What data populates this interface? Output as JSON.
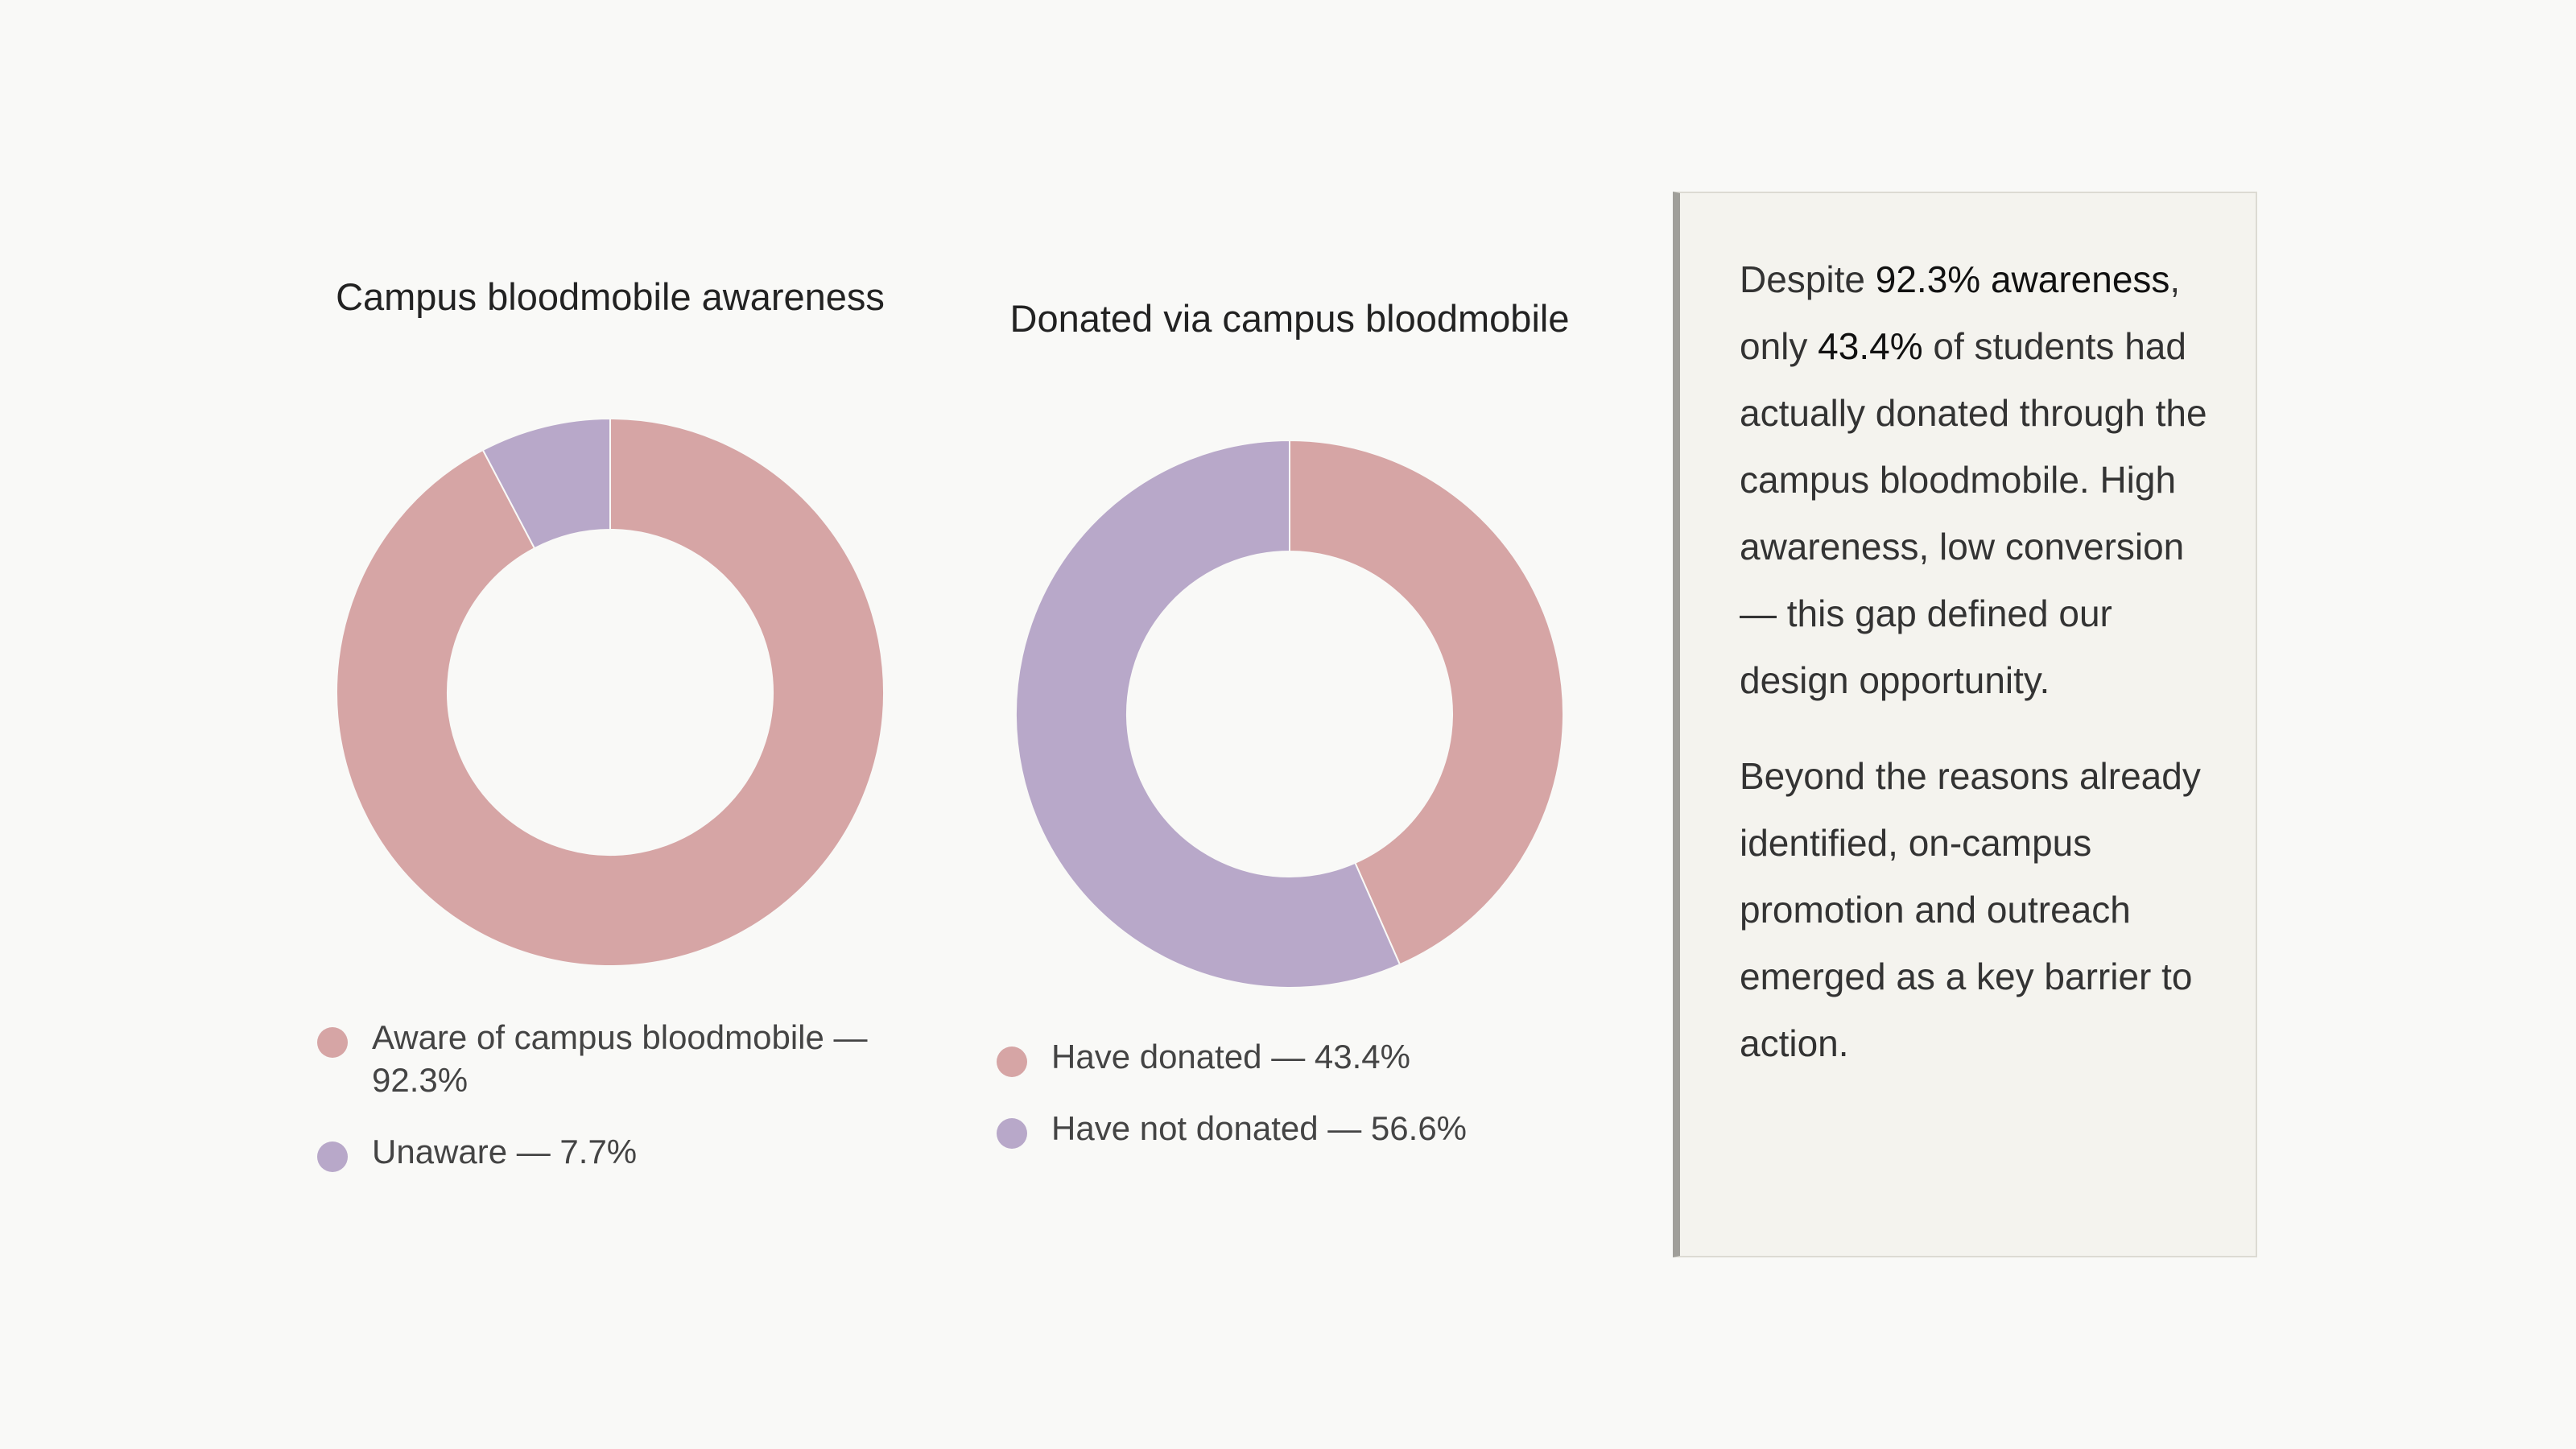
{
  "colors": {
    "aware": "#d6a5a5",
    "unaware": "#b8a8c9",
    "have_donated": "#d6a5a5",
    "have_not_donated": "#b8a8c9"
  },
  "chart_data": [
    {
      "type": "pie",
      "title": "Campus bloodmobile awareness",
      "categories": [
        "Aware of campus bloodmobile",
        "Unaware"
      ],
      "values": [
        92.3,
        7.7
      ],
      "legend_labels": [
        "Aware of campus bloodmobile — 92.3%",
        "Unaware — 7.7%"
      ],
      "colors": [
        "#d6a5a5",
        "#b8a8c9"
      ],
      "legend_placement": "bottom"
    },
    {
      "type": "pie",
      "title": "Donated via campus bloodmobile",
      "categories": [
        "Have donated",
        "Have not donated"
      ],
      "values": [
        43.4,
        56.6
      ],
      "legend_labels": [
        "Have donated — 43.4%",
        "Have not donated — 56.6%"
      ],
      "colors": [
        "#d6a5a5",
        "#b8a8c9"
      ],
      "legend_placement": "bottom"
    }
  ],
  "callout": {
    "p1": {
      "pre": "Despite ",
      "stat1": "92.3% awareness",
      "mid": ", only ",
      "stat2": "43.4%",
      "post": " of students had actually donated through the campus bloodmobile. High awareness, low conversion — this gap defined our design opportunity."
    },
    "p2": "Beyond the reasons already identified, on-campus promotion and outreach emerged as a key barrier to action."
  }
}
